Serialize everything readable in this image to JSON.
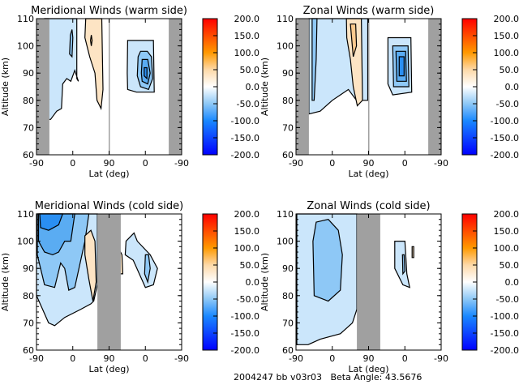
{
  "footer": {
    "label": "2004247 bb v03r03   Beta Angle: 43.5676"
  },
  "colors": {
    "gap": "#a0a0a0",
    "levels": {
      "-100": "#2a8ff2",
      "-75": "#5aacf2",
      "-50": "#8ec8f6",
      "-25": "#cbe6fb",
      "25": "#fde4c4",
      "50": "#fbc98e"
    }
  },
  "colorbar": {
    "ticks": [
      "200.0",
      "150.0",
      "100.0",
      "50.0",
      "0.0",
      "-50.0",
      "-100.0",
      "-150.0",
      "-200.0"
    ],
    "range": [
      -200,
      200
    ],
    "stops": [
      [
        "-200",
        "#0000ff"
      ],
      [
        "-100",
        "#1a88ff"
      ],
      [
        "-50",
        "#8ec8f6"
      ],
      [
        "0",
        "#ffffff"
      ],
      [
        "50",
        "#fdd9a8"
      ],
      [
        "100",
        "#ff9900"
      ],
      [
        "200",
        "#ff0000"
      ]
    ]
  },
  "chart_data": [
    {
      "type": "heatmap",
      "title": "Meridional Winds (warm side)",
      "xlabel": "Lat (deg)",
      "ylabel": "Altitude (km)",
      "xticks": [
        "-90",
        "0",
        "90",
        "0",
        "-90"
      ],
      "yticks": [
        "60",
        "70",
        "80",
        "90",
        "100",
        "110"
      ],
      "ylim": [
        60,
        110
      ],
      "gaps": [
        {
          "leg": "asc",
          "lat": [
            -90,
            -58
          ]
        },
        {
          "leg": "desc",
          "lat": [
            -58,
            -90
          ]
        },
        {
          "leg": "asc",
          "lat": [
            89,
            90
          ]
        }
      ],
      "contours": [
        {
          "level": -25,
          "leg": "asc",
          "pts": [
            [
              -70,
              73
            ],
            [
              -70,
              110
            ],
            [
              10,
              110
            ],
            [
              10,
              88
            ],
            [
              14,
              87
            ],
            [
              5,
              91
            ],
            [
              -5,
              87
            ],
            [
              -15,
              88
            ],
            [
              -25,
              86
            ],
            [
              -28,
              77
            ],
            [
              -40,
              76
            ],
            [
              -55,
              73
            ]
          ]
        },
        {
          "level": -50,
          "leg": "asc",
          "pts": [
            [
              -69,
              77
            ],
            [
              -69,
              110
            ],
            [
              -60,
              110
            ],
            [
              -60,
              95
            ],
            [
              -62,
              80
            ]
          ]
        },
        {
          "level": -50,
          "leg": "asc",
          "pts": [
            [
              -8,
              97
            ],
            [
              -6,
              104
            ],
            [
              -2,
              106
            ],
            [
              0,
              103
            ],
            [
              -2,
              96
            ]
          ]
        },
        {
          "level": 25,
          "leg": "asc",
          "pts": [
            [
              32,
              110
            ],
            [
              72,
              110
            ],
            [
              75,
              84
            ],
            [
              70,
              77
            ],
            [
              60,
              80
            ],
            [
              55,
              90
            ],
            [
              42,
              96
            ],
            [
              30,
              103
            ]
          ]
        },
        {
          "level": 50,
          "leg": "asc",
          "pts": [
            [
              44,
              102
            ],
            [
              46,
              104
            ],
            [
              48,
              102
            ],
            [
              46,
              100
            ]
          ]
        },
        {
          "level": -25,
          "leg": "desc",
          "pts": [
            [
              44,
              102
            ],
            [
              -20,
              102
            ],
            [
              -22,
              83
            ],
            [
              22,
              83
            ],
            [
              44,
              84
            ],
            [
              45,
              90
            ]
          ]
        },
        {
          "level": -50,
          "leg": "desc",
          "pts": [
            [
              18,
              96
            ],
            [
              12,
              98
            ],
            [
              -5,
              98
            ],
            [
              -15,
              96
            ],
            [
              -18,
              88
            ],
            [
              -8,
              84
            ],
            [
              12,
              85
            ],
            [
              20,
              89
            ]
          ]
        },
        {
          "level": -75,
          "leg": "desc",
          "pts": [
            [
              8,
              95
            ],
            [
              -6,
              95
            ],
            [
              -12,
              90
            ],
            [
              -6,
              86
            ],
            [
              8,
              87
            ],
            [
              10,
              90
            ]
          ]
        },
        {
          "level": -100,
          "leg": "desc",
          "pts": [
            [
              3,
              92
            ],
            [
              -4,
              92
            ],
            [
              -4,
              88
            ],
            [
              3,
              89
            ]
          ]
        }
      ]
    },
    {
      "type": "heatmap",
      "title": "Zonal Winds (warm side)",
      "xlabel": "Lat (deg)",
      "ylabel": "Altitude (km)",
      "xticks": [
        "-90",
        "0",
        "90",
        "0",
        "-90"
      ],
      "yticks": [
        "60",
        "70",
        "80",
        "90",
        "100",
        "110"
      ],
      "ylim": [
        60,
        110
      ],
      "gaps": [
        {
          "leg": "asc",
          "lat": [
            -90,
            -58
          ]
        },
        {
          "leg": "desc",
          "lat": [
            -58,
            -90
          ]
        },
        {
          "leg": "asc",
          "lat": [
            89,
            90
          ]
        }
      ],
      "contours": [
        {
          "level": -25,
          "leg": "asc",
          "pts": [
            [
              -58,
              75
            ],
            [
              -58,
              110
            ],
            [
              88,
              110
            ],
            [
              88,
              80
            ],
            [
              60,
              80
            ],
            [
              40,
              84
            ],
            [
              20,
              82
            ],
            [
              0,
              80
            ],
            [
              -30,
              76
            ]
          ]
        },
        {
          "level": -50,
          "leg": "asc",
          "pts": [
            [
              -50,
              80
            ],
            [
              -50,
              110
            ],
            [
              -38,
              110
            ],
            [
              -40,
              95
            ],
            [
              -45,
              80
            ]
          ]
        },
        {
          "level": 25,
          "leg": "asc",
          "pts": [
            [
              35,
              110
            ],
            [
              72,
              110
            ],
            [
              75,
              80
            ],
            [
              62,
              78
            ],
            [
              52,
              85
            ],
            [
              45,
              95
            ],
            [
              36,
              103
            ]
          ]
        },
        {
          "level": 50,
          "leg": "asc",
          "pts": [
            [
              45,
              108
            ],
            [
              58,
              108
            ],
            [
              60,
              100
            ],
            [
              52,
              96
            ]
          ]
        },
        {
          "level": -25,
          "leg": "desc",
          "pts": [
            [
              42,
              103
            ],
            [
              -15,
              103
            ],
            [
              -17,
              83
            ],
            [
              30,
              82
            ],
            [
              42,
              86
            ]
          ]
        },
        {
          "level": -50,
          "leg": "desc",
          "pts": [
            [
              30,
              100
            ],
            [
              -8,
              100
            ],
            [
              -10,
              85
            ],
            [
              28,
              85
            ]
          ]
        },
        {
          "level": -75,
          "leg": "desc",
          "pts": [
            [
              22,
              98
            ],
            [
              -2,
              98
            ],
            [
              -4,
              87
            ],
            [
              20,
              87
            ]
          ]
        },
        {
          "level": -100,
          "leg": "desc",
          "pts": [
            [
              14,
              96
            ],
            [
              2,
              96
            ],
            [
              2,
              89
            ],
            [
              14,
              89
            ]
          ]
        }
      ]
    },
    {
      "type": "heatmap",
      "title": "Meridional Winds (cold side)",
      "xlabel": "Lat (deg)",
      "ylabel": "Altitude (km)",
      "xticks": [
        "-90",
        "0",
        "90",
        "0",
        "-90"
      ],
      "yticks": [
        "60",
        "70",
        "80",
        "90",
        "100",
        "110"
      ],
      "ylim": [
        60,
        110
      ],
      "gaps": [
        {
          "leg": "asc",
          "lat": [
            61,
            90
          ]
        },
        {
          "leg": "desc",
          "lat": [
            90,
            61
          ]
        }
      ],
      "contours": [
        {
          "level": -25,
          "leg": "asc",
          "pts": [
            [
              -90,
              110
            ],
            [
              61,
              110
            ],
            [
              61,
              84
            ],
            [
              52,
              78
            ],
            [
              45,
              77
            ],
            [
              20,
              75
            ],
            [
              -20,
              72
            ],
            [
              -45,
              69
            ],
            [
              -60,
              70
            ],
            [
              -75,
              75
            ],
            [
              -90,
              80
            ]
          ]
        },
        {
          "level": -50,
          "leg": "asc",
          "pts": [
            [
              -88,
              110
            ],
            [
              40,
              110
            ],
            [
              30,
              100
            ],
            [
              5,
              83
            ],
            [
              -10,
              82
            ],
            [
              -20,
              90
            ],
            [
              -30,
              92
            ],
            [
              -45,
              83
            ],
            [
              -70,
              84
            ],
            [
              -88,
              95
            ]
          ]
        },
        {
          "level": -75,
          "leg": "asc",
          "pts": [
            [
              -85,
              110
            ],
            [
              5,
              110
            ],
            [
              -5,
              100
            ],
            [
              -20,
              100
            ],
            [
              -35,
              96
            ],
            [
              -50,
              95
            ],
            [
              -70,
              96
            ],
            [
              -85,
              100
            ]
          ]
        },
        {
          "level": -100,
          "leg": "asc",
          "pts": [
            [
              -82,
              110
            ],
            [
              -25,
              110
            ],
            [
              -35,
              106
            ],
            [
              -60,
              104
            ],
            [
              -80,
              105
            ]
          ]
        },
        {
          "level": 25,
          "leg": "asc",
          "pts": [
            [
              30,
              102
            ],
            [
              45,
              104
            ],
            [
              55,
              100
            ],
            [
              58,
              85
            ],
            [
              50,
              78
            ],
            [
              40,
              86
            ],
            [
              30,
              95
            ]
          ]
        },
        {
          "level": -25,
          "leg": "desc",
          "pts": [
            [
              48,
              100
            ],
            [
              28,
              103
            ],
            [
              20,
              100
            ],
            [
              -12,
              95
            ],
            [
              -30,
              90
            ],
            [
              -20,
              84
            ],
            [
              0,
              83
            ],
            [
              30,
              93
            ],
            [
              50,
              95
            ]
          ]
        },
        {
          "level": -50,
          "leg": "desc",
          "pts": [
            [
              0,
              95
            ],
            [
              -8,
              95
            ],
            [
              -12,
              90
            ],
            [
              -6,
              85
            ],
            [
              2,
              88
            ]
          ]
        },
        {
          "level": 25,
          "leg": "desc",
          "pts": [
            [
              65,
              97
            ],
            [
              58,
              95
            ],
            [
              56,
              88
            ],
            [
              63,
              88
            ]
          ]
        }
      ]
    },
    {
      "type": "heatmap",
      "title": "Zonal Winds (cold side)",
      "xlabel": "Lat (deg)",
      "ylabel": "Altitude (km)",
      "xticks": [
        "-90",
        "0",
        "90",
        "0",
        "-90"
      ],
      "yticks": [
        "60",
        "70",
        "80",
        "90",
        "100",
        "110"
      ],
      "ylim": [
        60,
        110
      ],
      "gaps": [
        {
          "leg": "asc",
          "lat": [
            61,
            90
          ]
        },
        {
          "leg": "desc",
          "lat": [
            90,
            61
          ]
        }
      ],
      "contours": [
        {
          "level": -25,
          "leg": "asc",
          "pts": [
            [
              -88,
              62
            ],
            [
              -88,
              110
            ],
            [
              61,
              110
            ],
            [
              61,
              75
            ],
            [
              50,
              70
            ],
            [
              20,
              66
            ],
            [
              -30,
              64
            ],
            [
              -60,
              62
            ]
          ]
        },
        {
          "level": -50,
          "leg": "asc",
          "pts": [
            [
              -45,
              80
            ],
            [
              -48,
              100
            ],
            [
              -40,
              107
            ],
            [
              -10,
              108
            ],
            [
              15,
              104
            ],
            [
              25,
              95
            ],
            [
              20,
              82
            ],
            [
              -10,
              78
            ]
          ]
        },
        {
          "level": -25,
          "leg": "desc",
          "pts": [
            [
              25,
              100
            ],
            [
              0,
              100
            ],
            [
              -5,
              88
            ],
            [
              -12,
              83
            ],
            [
              5,
              84
            ],
            [
              25,
              90
            ]
          ]
        },
        {
          "level": -50,
          "leg": "desc",
          "pts": [
            [
              6,
              95
            ],
            [
              2,
              95
            ],
            [
              0,
              89
            ],
            [
              5,
              88
            ]
          ]
        },
        {
          "level": 25,
          "leg": "desc",
          "pts": [
            [
              -18,
              98
            ],
            [
              -22,
              98
            ],
            [
              -22,
              94
            ],
            [
              -18,
              94
            ]
          ]
        }
      ]
    }
  ]
}
